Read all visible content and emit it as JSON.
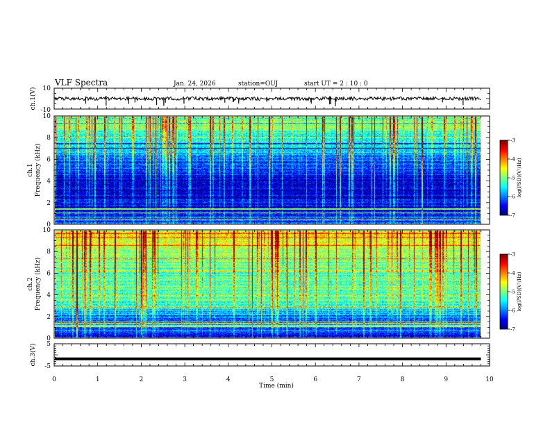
{
  "header": {
    "title": "VLF Spectra",
    "date": "Jan. 24, 2026",
    "station": "station=OUJ",
    "start": "start  UT =   2 : 10 : 0"
  },
  "chart_data": {
    "type": "heatmap",
    "title": "VLF Spectra",
    "xlabel": "Time (min)",
    "xlim": [
      0,
      10
    ],
    "x_ticks": [
      "0",
      "1",
      "2",
      "3",
      "4",
      "5",
      "6",
      "7",
      "8",
      "9",
      "10"
    ],
    "panels": [
      {
        "name": "ch1-waveform",
        "type": "line",
        "ylabel": "ch.1(V)",
        "ylim": [
          -10,
          10
        ],
        "y_ticks": [
          "10",
          "-10"
        ],
        "baseline": 0,
        "data_end_min": 9.8
      },
      {
        "name": "ch1-spectrogram",
        "type": "heatmap",
        "ylabel": "ch.1 Frequency (kHz)",
        "ylim": [
          0,
          10
        ],
        "y_ticks": [
          "0",
          "2",
          "4",
          "6",
          "8",
          "10"
        ],
        "data_end_min": 9.8,
        "colorbar": {
          "label": "log(PSD)(V²/Hz)",
          "range": [
            -7,
            -3
          ],
          "ticks": [
            "-3",
            "-4",
            "-5",
            "-6",
            "-7"
          ]
        },
        "profile_freq_khz": [
          0,
          1,
          2,
          3,
          4,
          5,
          6,
          7,
          8,
          9,
          10
        ],
        "profile_log_psd": [
          -6.2,
          -6.4,
          -6.5,
          -6.6,
          -6.7,
          -6.4,
          -6.0,
          -5.6,
          -5.3,
          -5.0,
          -4.9
        ]
      },
      {
        "name": "ch2-spectrogram",
        "type": "heatmap",
        "ylabel": "ch.2 Frequency (kHz)",
        "ylim": [
          0,
          10
        ],
        "y_ticks": [
          "0",
          "2",
          "4",
          "6",
          "8",
          "10"
        ],
        "data_end_min": 9.8,
        "colorbar": {
          "label": "log(PSD)(V²/Hz)",
          "range": [
            -7,
            -3
          ],
          "ticks": [
            "-3",
            "-4",
            "-5",
            "-6",
            "-7"
          ]
        },
        "profile_freq_khz": [
          0,
          1,
          2,
          3,
          4,
          5,
          6,
          7,
          8,
          9,
          10
        ],
        "profile_log_psd": [
          -6.5,
          -6.3,
          -6.0,
          -5.4,
          -5.1,
          -5.2,
          -5.2,
          -5.0,
          -4.8,
          -4.6,
          -4.5
        ]
      },
      {
        "name": "ch3-waveform",
        "type": "line",
        "ylabel": "ch.3(V)",
        "ylim": [
          -5,
          5
        ],
        "y_ticks": [
          "5",
          "0",
          "-5"
        ],
        "baseline": -1.8,
        "data_end_min": 9.8
      }
    ]
  }
}
